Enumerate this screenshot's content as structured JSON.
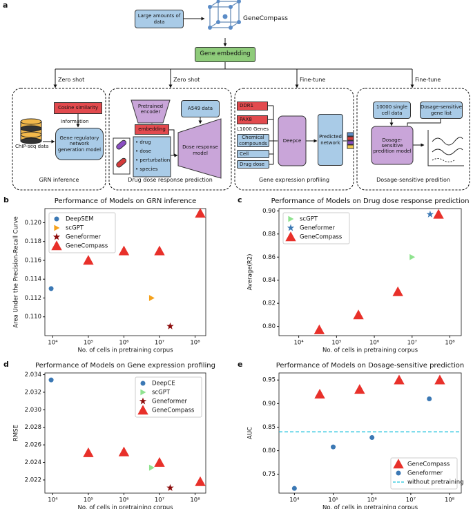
{
  "diagram": {
    "label": "a",
    "source": "Large amounts of data",
    "model": "GeneCompass",
    "embedding": "Gene embedding",
    "branches": [
      "Zero shot",
      "Zero shot",
      "Fine-tune",
      "Fine-tune"
    ],
    "tasks": [
      {
        "title": "GRN inference",
        "similarity": "Cosine similarity",
        "flow": "Information",
        "model": "Gene regulatory network generation model",
        "input": "ChIP-seq data"
      },
      {
        "title": "Drug dose response prediction",
        "encoder": "Pretrained encoder",
        "embedding": "embedding",
        "features": [
          "drug",
          "dose",
          "perturbation",
          "species"
        ],
        "data": "A549 data",
        "model": "Dose response model"
      },
      {
        "title": "Gene expression profiling",
        "genes": [
          "DDR1",
          "PAX8"
        ],
        "gene_set": "L1000 Genes",
        "inputs": [
          "Chemical compounds",
          "Cell",
          "Drug dose"
        ],
        "model": "Deepce",
        "output": "Predicted network"
      },
      {
        "title": "Dosage-sensitive predition",
        "inputs": [
          "10000 single cell data",
          "Dosage-sensitive gene list"
        ],
        "model": "Dosage-sensitive predition model"
      }
    ]
  },
  "chart_data": [
    {
      "type": "scatter",
      "label": "b",
      "title": "Performance of Models on GRN inference",
      "xlabel": "No. of cells in pretraining corpus",
      "ylabel": "Area Under the Precision-Recall Curve",
      "xscale": "log",
      "xlim": [
        6000,
        200000000
      ],
      "xticks": [
        {
          "value": 10000,
          "label": "10⁴"
        },
        {
          "value": 100000,
          "label": "10⁵"
        },
        {
          "value": 1000000,
          "label": "10⁶"
        },
        {
          "value": 10000000,
          "label": "10⁷"
        },
        {
          "value": 100000000,
          "label": "10⁸"
        }
      ],
      "ylim": [
        0.108,
        0.1215
      ],
      "yticks": [
        {
          "value": 0.11,
          "label": "0.110"
        },
        0.112,
        0.114,
        0.116,
        0.118,
        {
          "value": 0.12,
          "label": "0.120"
        }
      ],
      "legend": "upper left",
      "series": [
        {
          "name": "DeepSEM",
          "color": "#3b78b4",
          "marker": "circle",
          "x": [
            9000
          ],
          "values": [
            0.113
          ]
        },
        {
          "name": "scGPT",
          "color": "#f5a11c",
          "marker": "triangle-right",
          "x": [
            6000000
          ],
          "values": [
            0.112
          ]
        },
        {
          "name": "Geneformer",
          "color": "#8b0a0a",
          "marker": "star",
          "x": [
            20000000
          ],
          "values": [
            0.109
          ]
        },
        {
          "name": "GeneCompass",
          "color": "#e8302a",
          "marker": "triangle-up",
          "x": [
            100000,
            1000000,
            10000000,
            140000000
          ],
          "values": [
            0.116,
            0.117,
            0.117,
            0.121
          ]
        }
      ]
    },
    {
      "type": "scatter",
      "label": "c",
      "title": "Performance of Models on Drug dose response prediction",
      "xlabel": "No. of cells in pretraining corpus",
      "ylabel": "Average(R2)",
      "xscale": "log",
      "xlim": [
        3000,
        200000000
      ],
      "xticks": [
        {
          "value": 10000,
          "label": "10⁴"
        },
        {
          "value": 100000,
          "label": "10⁵"
        },
        {
          "value": 1000000,
          "label": "10⁶"
        },
        {
          "value": 10000000,
          "label": "10⁷"
        },
        {
          "value": 100000000,
          "label": "10⁸"
        }
      ],
      "ylim": [
        0.792,
        0.902
      ],
      "yticks": [
        {
          "value": 0.8,
          "label": "0.80"
        },
        0.82,
        0.84,
        0.86,
        0.88,
        {
          "value": 0.9,
          "label": "0.90"
        }
      ],
      "legend": "upper left",
      "series": [
        {
          "name": "scGPT",
          "color": "#8fe38f",
          "marker": "triangle-right",
          "x": [
            10000000
          ],
          "values": [
            0.86
          ]
        },
        {
          "name": "Geneformer",
          "color": "#3b78b4",
          "marker": "star",
          "x": [
            30000000
          ],
          "values": [
            0.897
          ]
        },
        {
          "name": "GeneCompass",
          "color": "#e8302a",
          "marker": "triangle-up",
          "x": [
            35000,
            380000,
            4200000,
            50000000
          ],
          "values": [
            0.797,
            0.81,
            0.83,
            0.897
          ]
        }
      ]
    },
    {
      "type": "scatter",
      "label": "d",
      "title": "Performance of Models on Gene expression profiling",
      "xlabel": "No. of cells in pretraining corpus",
      "ylabel": "RMSE",
      "xscale": "log",
      "xlim": [
        6000,
        200000000
      ],
      "xticks": [
        {
          "value": 10000,
          "label": "10⁴"
        },
        {
          "value": 100000,
          "label": "10⁵"
        },
        {
          "value": 1000000,
          "label": "10⁶"
        },
        {
          "value": 10000000,
          "label": "10⁷"
        },
        {
          "value": 100000000,
          "label": "10⁸"
        }
      ],
      "ylim": [
        2.0205,
        2.0342
      ],
      "yticks": [
        2.022,
        2.024,
        2.026,
        2.028,
        {
          "value": 2.03,
          "label": "2.030"
        },
        2.032,
        2.034
      ],
      "legend": "upper right",
      "series": [
        {
          "name": "DeepCE",
          "color": "#3b78b4",
          "marker": "circle",
          "x": [
            9000
          ],
          "values": [
            2.0334
          ]
        },
        {
          "name": "scGPT",
          "color": "#8fe38f",
          "marker": "triangle-right",
          "x": [
            6000000
          ],
          "values": [
            2.0234
          ]
        },
        {
          "name": "Geneformer",
          "color": "#8b0a0a",
          "marker": "star",
          "x": [
            20000000
          ],
          "values": [
            2.0211
          ]
        },
        {
          "name": "GeneCompass",
          "color": "#e8302a",
          "marker": "triangle-up",
          "x": [
            100000,
            1000000,
            10000000,
            140000000
          ],
          "values": [
            2.0251,
            2.0252,
            2.024,
            2.0218
          ]
        }
      ]
    },
    {
      "type": "scatter",
      "label": "e",
      "title": "Performance of Models on Dosage-sensitive prediction",
      "xlabel": "No. of cells in pretraining corpus",
      "ylabel": "AUC",
      "xscale": "log",
      "xlim": [
        4000,
        200000000
      ],
      "xticks": [
        {
          "value": 10000,
          "label": "10⁴"
        },
        {
          "value": 100000,
          "label": "10⁵"
        },
        {
          "value": 1000000,
          "label": "10⁶"
        },
        {
          "value": 10000000,
          "label": "10⁷"
        },
        {
          "value": 100000000,
          "label": "10⁸"
        }
      ],
      "ylim": [
        0.71,
        0.965
      ],
      "yticks": [
        0.75,
        {
          "value": 0.8,
          "label": "0.80"
        },
        0.85,
        {
          "value": 0.9,
          "label": "0.90"
        },
        0.95
      ],
      "legend": "lower right",
      "series": [
        {
          "name": "GeneCompass",
          "color": "#e8302a",
          "marker": "triangle-up",
          "x": [
            45000,
            480000,
            5000000,
            56000000
          ],
          "values": [
            0.92,
            0.93,
            0.95,
            0.95
          ]
        },
        {
          "name": "Geneformer",
          "color": "#3b78b4",
          "marker": "circle",
          "x": [
            10000,
            100000,
            1000000,
            30000000
          ],
          "values": [
            0.72,
            0.808,
            0.828,
            0.91
          ]
        }
      ],
      "reference_lines": [
        {
          "name": "without pretraining",
          "color": "#1ec3dc",
          "value": 0.84
        }
      ]
    }
  ]
}
